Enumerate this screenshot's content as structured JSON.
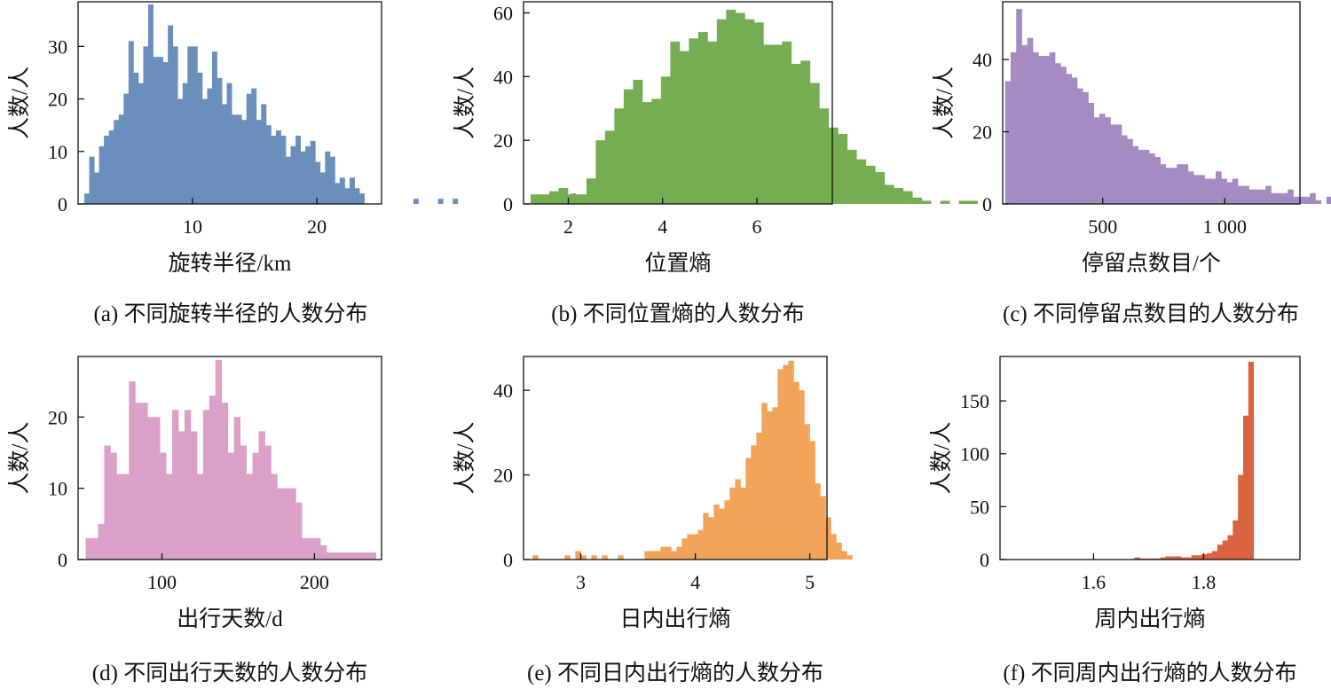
{
  "chart_data": [
    {
      "type": "bar",
      "caption": "(a) 不同旋转半径的人数分布",
      "xlabel": "旋转半径/km",
      "ylabel": "人数/人",
      "color": "#6a8fbd",
      "xlim": [
        0.8,
        25.2
      ],
      "ylim": [
        0,
        38.5
      ],
      "xticks": [
        {
          "v": 10,
          "label": "10"
        },
        {
          "v": 20,
          "label": "20"
        }
      ],
      "yticks": [
        {
          "v": 0,
          "label": "0"
        },
        {
          "v": 10,
          "label": "10"
        },
        {
          "v": 20,
          "label": "20"
        },
        {
          "v": 30,
          "label": "30"
        }
      ],
      "bin_start": 1.3,
      "bin_width": 0.395,
      "values": [
        2,
        9,
        6,
        11,
        13,
        14,
        16,
        17,
        21,
        31,
        25,
        23,
        30,
        38,
        28,
        28,
        27,
        34,
        30,
        20,
        23,
        30,
        30,
        25,
        20,
        22,
        29,
        24,
        19,
        23,
        17,
        17,
        16,
        21,
        22,
        16,
        19,
        15,
        13,
        14,
        13,
        9,
        11,
        13,
        10,
        11,
        12,
        8,
        6,
        10,
        9,
        4,
        5,
        3,
        5,
        3,
        2,
        0,
        0,
        0,
        0,
        0,
        0,
        0,
        0,
        0,
        0,
        1,
        0,
        0,
        0,
        0,
        1,
        0,
        0,
        1,
        0,
        0,
        0,
        0,
        0,
        0,
        0,
        0,
        0,
        0,
        0,
        0,
        0,
        0,
        0,
        0,
        0,
        0,
        0,
        0,
        0,
        0,
        0,
        2
      ]
    },
    {
      "type": "bar",
      "caption": "(b) 不同位置熵的人数分布",
      "xlabel": "位置熵",
      "ylabel": "人数/人",
      "color": "#74ad52",
      "xlim": [
        1.05,
        7.6
      ],
      "ylim": [
        0,
        63.5
      ],
      "xticks": [
        {
          "v": 2,
          "label": "2"
        },
        {
          "v": 4,
          "label": "4"
        },
        {
          "v": 6,
          "label": "6"
        }
      ],
      "yticks": [
        {
          "v": 0,
          "label": "0"
        },
        {
          "v": 20,
          "label": "20"
        },
        {
          "v": 40,
          "label": "40"
        },
        {
          "v": 60,
          "label": "60"
        }
      ],
      "bin_start": 1.2,
      "bin_width": 0.1975,
      "values": [
        3,
        3,
        4,
        5,
        3,
        3,
        8,
        20,
        23,
        30,
        36,
        39,
        32,
        33,
        40,
        51,
        48,
        52,
        54,
        51,
        58,
        61,
        60,
        58,
        57,
        50,
        50,
        51,
        44,
        45,
        38,
        30,
        24,
        22,
        17,
        14,
        12,
        10,
        6,
        5,
        4,
        2,
        1,
        0,
        1,
        0,
        1,
        1
      ]
    },
    {
      "type": "bar",
      "caption": "(c) 不同停留点数目的人数分布",
      "xlabel": "停留点数目/个",
      "ylabel": "人数/人",
      "color": "#a68bc3",
      "xlim": [
        90,
        1308
      ],
      "ylim": [
        0,
        56
      ],
      "xticks": [
        {
          "v": 500,
          "label": "500"
        },
        {
          "v": 1000,
          "label": "1 000"
        }
      ],
      "yticks": [
        {
          "v": 0,
          "label": "0"
        },
        {
          "v": 20,
          "label": "20"
        },
        {
          "v": 40,
          "label": "40"
        }
      ],
      "bin_start": 100,
      "bin_width": 22.7,
      "values": [
        34,
        42,
        54,
        44,
        46,
        42,
        41,
        41,
        42,
        39,
        38,
        36,
        35,
        32,
        31,
        28,
        24,
        25,
        24,
        22,
        22,
        19,
        18,
        16,
        15,
        15,
        14,
        13,
        11,
        10,
        10,
        11,
        11,
        9,
        8,
        8,
        7,
        7,
        9,
        7,
        6,
        7,
        5,
        5,
        4,
        4,
        4,
        5,
        3,
        3,
        3,
        4,
        2,
        2,
        2,
        3,
        1,
        0,
        2,
        0,
        1,
        0,
        0,
        0,
        1,
        0,
        1,
        0,
        0,
        0,
        0,
        0,
        0,
        0,
        0,
        1,
        0,
        0,
        1,
        0,
        0,
        0,
        0,
        0,
        0,
        0,
        0,
        0,
        0,
        0,
        0,
        0,
        1
      ]
    },
    {
      "type": "bar",
      "caption": "(d) 不同出行天数的人数分布",
      "xlabel": "出行天数/d",
      "ylabel": "人数/人",
      "color": "#dba0c8",
      "xlim": [
        45,
        244
      ],
      "ylim": [
        0,
        28.5
      ],
      "xticks": [
        {
          "v": 100,
          "label": "100"
        },
        {
          "v": 200,
          "label": "200"
        }
      ],
      "yticks": [
        {
          "v": 0,
          "label": "0"
        },
        {
          "v": 10,
          "label": "10"
        },
        {
          "v": 20,
          "label": "20"
        }
      ],
      "bin_start": 50,
      "bin_width": 4.05,
      "values": [
        3,
        3,
        5,
        16,
        15,
        12,
        12,
        25,
        22,
        22,
        20,
        20,
        15,
        12,
        21,
        18,
        21,
        18,
        12,
        21,
        23,
        28,
        22,
        15,
        20,
        16,
        12,
        15,
        18,
        16,
        12,
        10,
        10,
        10,
        8,
        3,
        3,
        3,
        2,
        1,
        1,
        1,
        1,
        1,
        1,
        1,
        1
      ]
    },
    {
      "type": "bar",
      "caption": "(e) 不同日内出行熵的人数分布",
      "xlabel": "日内出行熵",
      "ylabel": "人数/人",
      "color": "#f2a35a",
      "xlim": [
        2.5,
        5.15
      ],
      "ylim": [
        0,
        48
      ],
      "xticks": [
        {
          "v": 3,
          "label": "3"
        },
        {
          "v": 4,
          "label": "4"
        },
        {
          "v": 5,
          "label": "5"
        }
      ],
      "yticks": [
        {
          "v": 0,
          "label": "0"
        },
        {
          "v": 20,
          "label": "20"
        },
        {
          "v": 40,
          "label": "40"
        }
      ],
      "bin_start": 2.58,
      "bin_width": 0.0465,
      "values": [
        1,
        0,
        0,
        0,
        0,
        0,
        1,
        0,
        2,
        1,
        0,
        1,
        0,
        1,
        0,
        0,
        1,
        0,
        0,
        0,
        0,
        2,
        2,
        2,
        3,
        3,
        2,
        3,
        5,
        6,
        6,
        7,
        11,
        10,
        13,
        12,
        14,
        17,
        19,
        17,
        24,
        27,
        30,
        37,
        35,
        36,
        45,
        46,
        47,
        42,
        40,
        32,
        28,
        18,
        15,
        10,
        6,
        4,
        2,
        1
      ]
    },
    {
      "type": "bar",
      "caption": "(f) 不同周内出行熵的人数分布",
      "xlabel": "周内出行熵",
      "ylabel": "人数/人",
      "color": "#d96240",
      "xlim": [
        1.43,
        1.975
      ],
      "ylim": [
        0,
        192
      ],
      "xticks": [
        {
          "v": 1.6,
          "label": "1.6"
        },
        {
          "v": 1.8,
          "label": "1.8"
        }
      ],
      "yticks": [
        {
          "v": 0,
          "label": "0"
        },
        {
          "v": 50,
          "label": "50"
        },
        {
          "v": 100,
          "label": "100"
        },
        {
          "v": 150,
          "label": "150"
        }
      ],
      "bin_start": 1.665,
      "bin_width": 0.0094,
      "values": [
        0,
        2,
        1,
        1,
        1,
        1,
        2,
        3,
        3,
        3,
        2,
        2,
        4,
        4,
        5,
        6,
        8,
        14,
        18,
        23,
        37,
        80,
        136,
        187
      ]
    }
  ]
}
